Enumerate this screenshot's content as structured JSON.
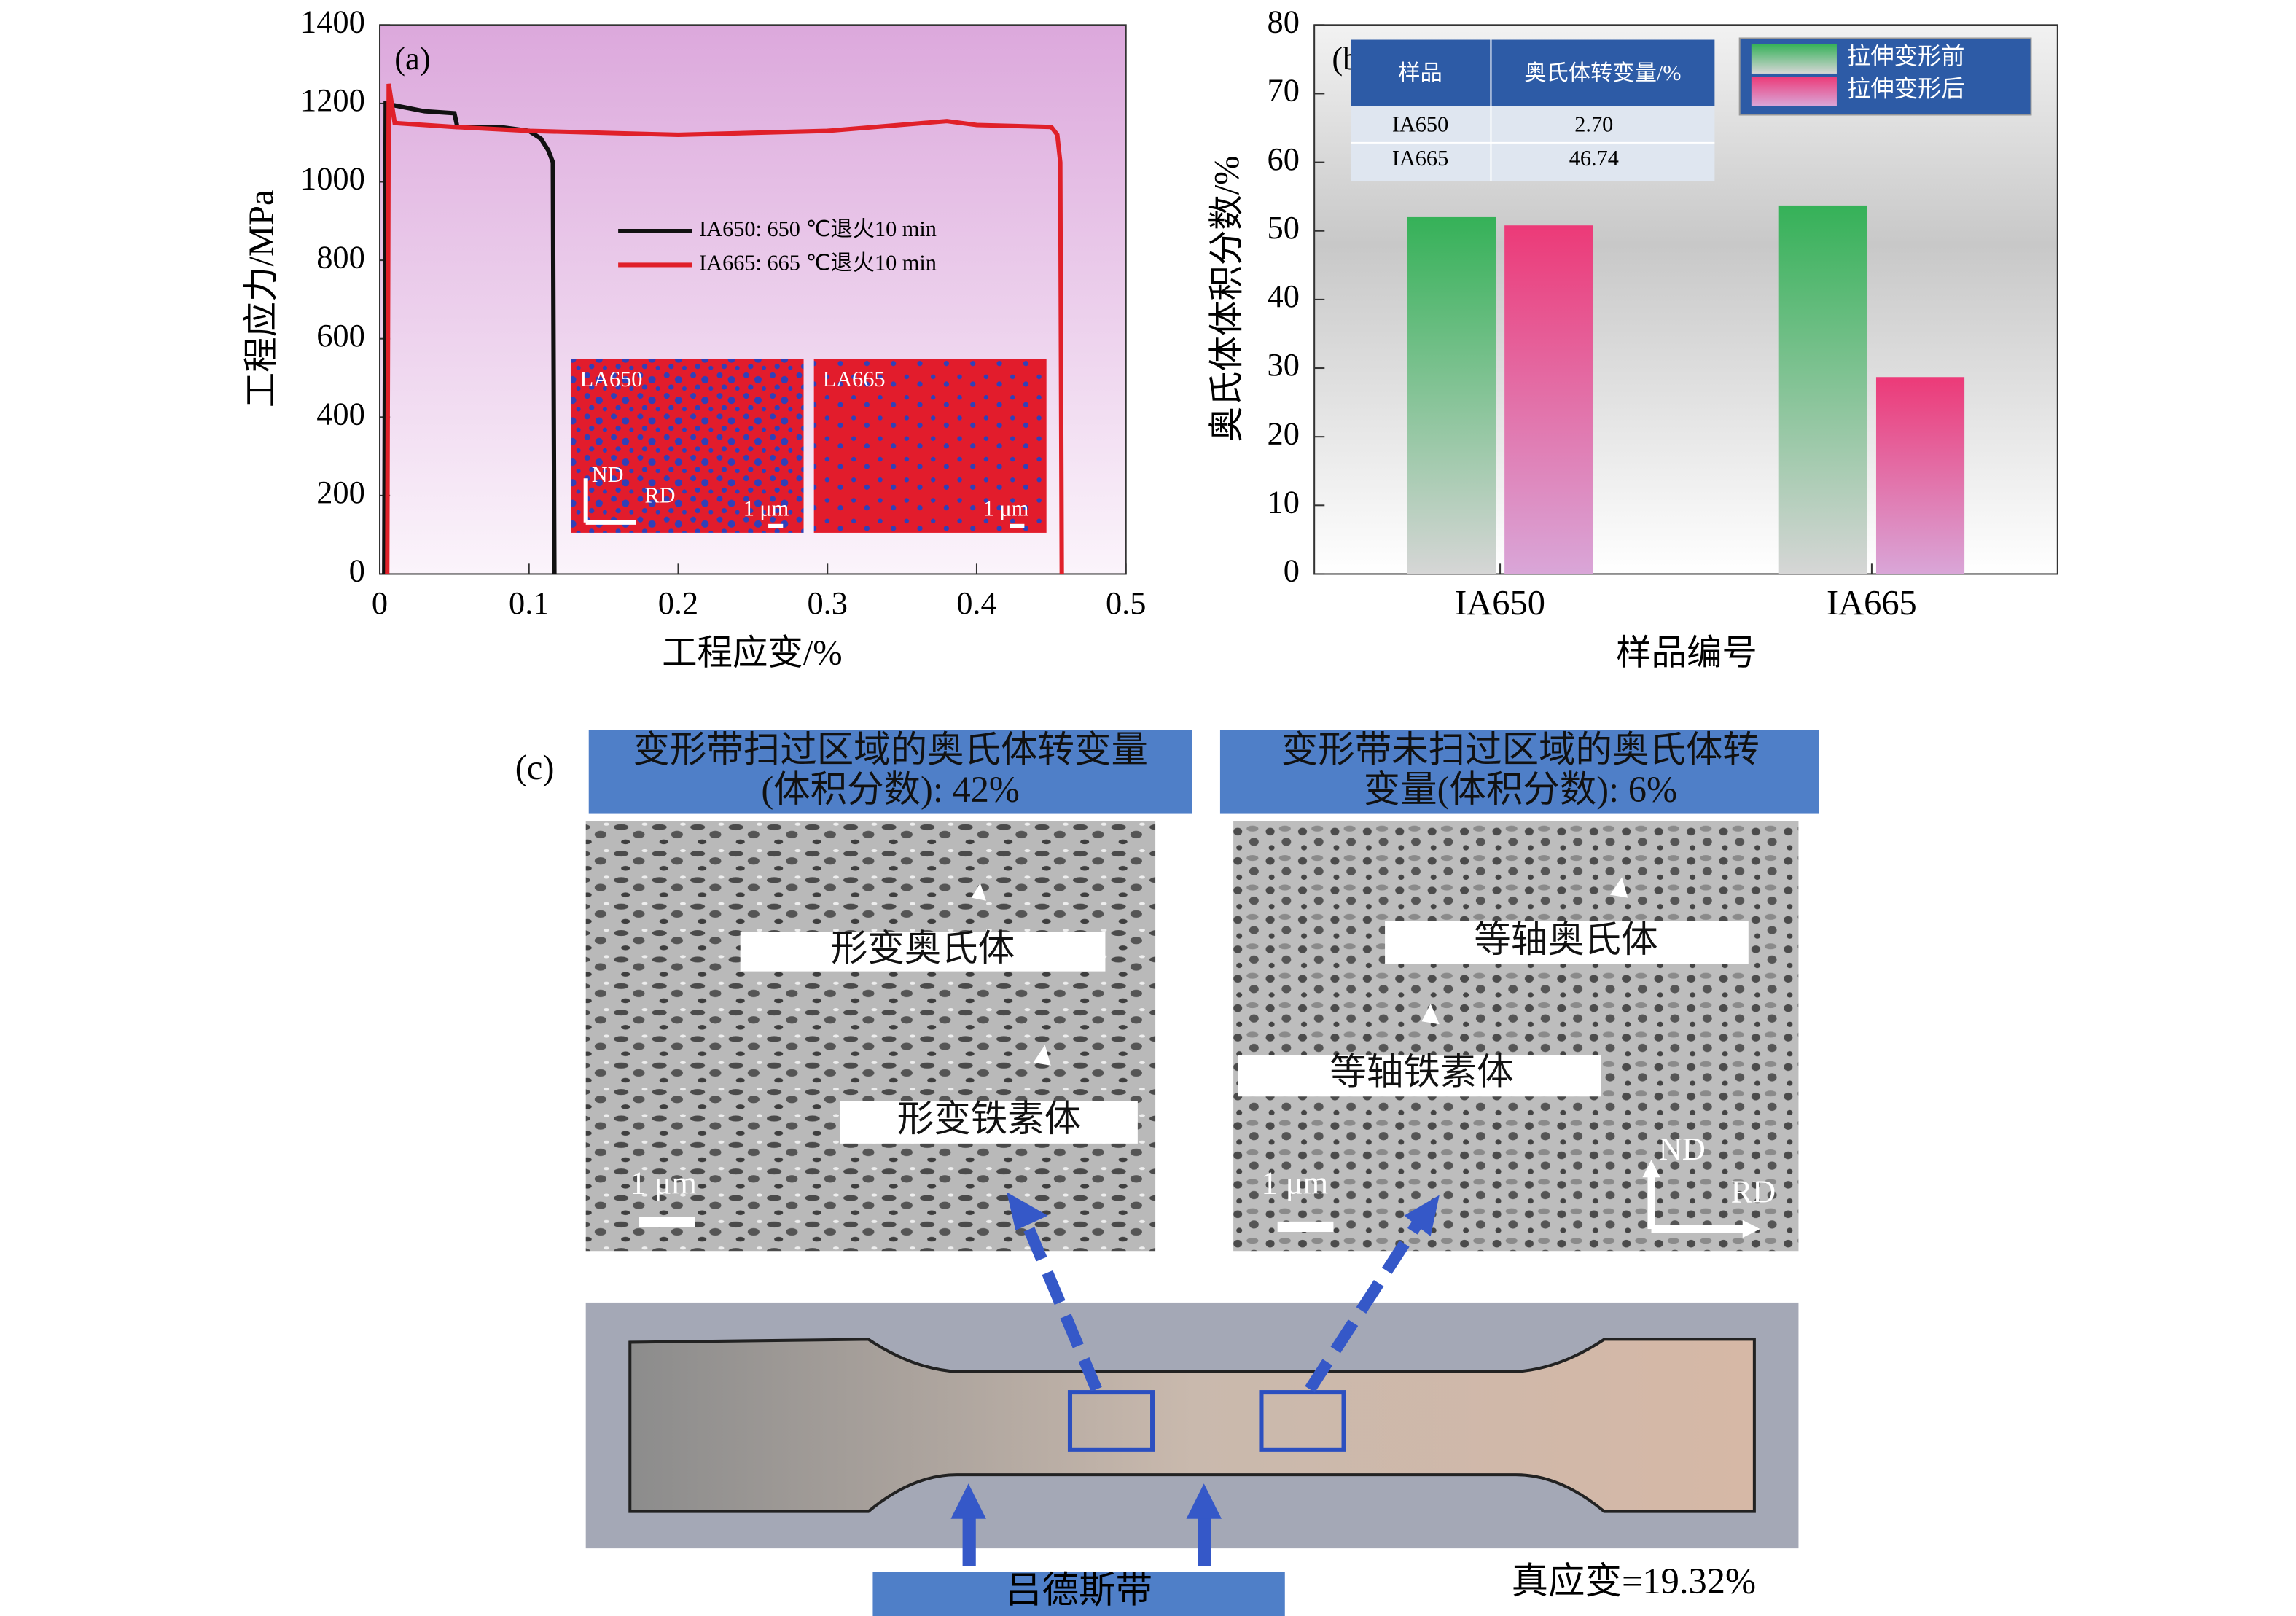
{
  "chart_data": [
    {
      "type": "line",
      "title": "(a)",
      "ylabel": "工程应力/MPa",
      "xlabel": "工程应变/%",
      "xlim": [
        0,
        0.5
      ],
      "xticks": [
        0,
        0.1,
        0.2,
        0.3,
        0.4,
        0.5
      ],
      "ylim": [
        0,
        1400
      ],
      "yticks": [
        0,
        200,
        400,
        600,
        800,
        1000,
        1200,
        1400
      ],
      "series": [
        {
          "name": "IA650: 650 ℃退火10 min",
          "color": "#111111",
          "x": [
            0.003,
            0.004,
            0.01,
            0.03,
            0.05,
            0.052,
            0.08,
            0.1,
            0.108,
            0.113,
            0.116,
            0.117
          ],
          "values": [
            0,
            1200,
            1195,
            1180,
            1175,
            1140,
            1140,
            1130,
            1110,
            1080,
            1050,
            0
          ]
        },
        {
          "name": "IA665: 665 ℃退火10 min",
          "color": "#e0202a",
          "x": [
            0.005,
            0.006,
            0.01,
            0.05,
            0.1,
            0.2,
            0.3,
            0.38,
            0.4,
            0.45,
            0.454,
            0.456,
            0.457
          ],
          "values": [
            0,
            1250,
            1150,
            1140,
            1130,
            1120,
            1130,
            1155,
            1145,
            1140,
            1120,
            1050,
            0
          ]
        }
      ],
      "annotations": {
        "inset": [
          "LA650",
          "LA665"
        ],
        "nd": "ND",
        "rd": "RD",
        "scale": "1 μm"
      }
    },
    {
      "type": "bar",
      "title": "(b)",
      "ylabel": "奥氏体体积分数/%",
      "xlabel": "样品编号",
      "categories": [
        "IA650",
        "IA665"
      ],
      "ylim": [
        0,
        80
      ],
      "yticks": [
        0,
        10,
        20,
        30,
        40,
        50,
        60,
        70,
        80
      ],
      "series": [
        {
          "name": "拉伸变形前",
          "color": "#35b158",
          "values": [
            52,
            53.7
          ]
        },
        {
          "name": "拉伸变形后",
          "color": "#ec3a78",
          "values": [
            50.8,
            28.7
          ]
        }
      ],
      "table": {
        "header": [
          "样品",
          "奥氏体转变量/%"
        ],
        "rows": [
          [
            "IA650",
            "2.70"
          ],
          [
            "IA665",
            "46.74"
          ]
        ]
      }
    }
  ],
  "panel_c": {
    "label": "(c)",
    "box_left": [
      "变形带扫过区域的奥氏体转变量",
      "(体积分数): 42%"
    ],
    "box_right": [
      "变形带未扫过区域的奥氏体转",
      "变量(体积分数): 6%"
    ],
    "labels": [
      "形变奥氏体",
      "形变铁素体",
      "等轴奥氏体",
      "等轴铁素体"
    ],
    "scale": "1 μm",
    "nd": "ND",
    "rd": "RD",
    "band": "吕德斯带",
    "strain": "真应变=19.32%"
  }
}
